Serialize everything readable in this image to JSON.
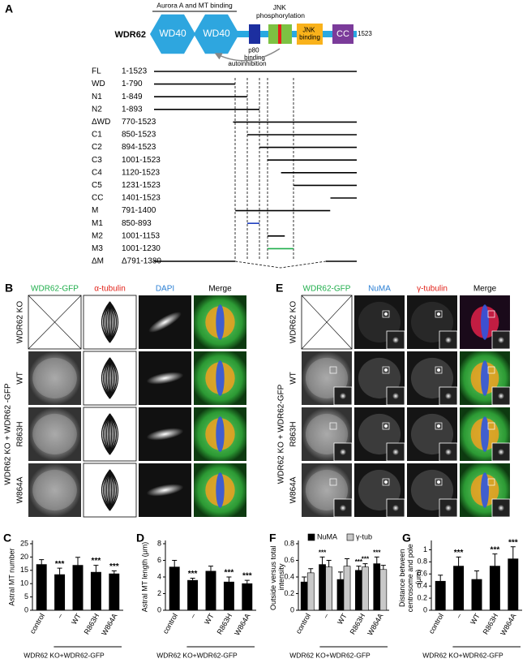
{
  "panel_a": {
    "label": "A",
    "protein": "WDR62",
    "domains": [
      "WD40",
      "WD40",
      "JNK binding",
      "CC"
    ],
    "length": 1523,
    "annotations": {
      "mt_binding": "Aurora A and MT binding",
      "jnk_phosphorylation": "JNK phosphorylation",
      "p80_binding": "p80 binding",
      "autoinhibition": "autoinhibition"
    },
    "constructs": [
      {
        "name": "FL",
        "range": "1-1523",
        "start": 1,
        "end": 1523,
        "color": "#000000"
      },
      {
        "name": "WD",
        "range": "1-790",
        "start": 1,
        "end": 790,
        "color": "#000000"
      },
      {
        "name": "N1",
        "range": "1-849",
        "start": 1,
        "end": 849,
        "color": "#000000"
      },
      {
        "name": "N2",
        "range": "1-893",
        "start": 1,
        "end": 893,
        "color": "#000000"
      },
      {
        "name": "ΔWD",
        "range": "770-1523",
        "start": 770,
        "end": 1523,
        "color": "#000000"
      },
      {
        "name": "C1",
        "range": "850-1523",
        "start": 850,
        "end": 1523,
        "color": "#000000"
      },
      {
        "name": "C2",
        "range": "894-1523",
        "start": 894,
        "end": 1523,
        "color": "#000000"
      },
      {
        "name": "C3",
        "range": "1001-1523",
        "start": 1001,
        "end": 1523,
        "color": "#000000"
      },
      {
        "name": "C4",
        "range": "1120-1523",
        "start": 1120,
        "end": 1523,
        "color": "#000000"
      },
      {
        "name": "C5",
        "range": "1231-1523",
        "start": 1231,
        "end": 1523,
        "color": "#000000"
      },
      {
        "name": "CC",
        "range": "1401-1523",
        "start": 1401,
        "end": 1523,
        "color": "#000000"
      },
      {
        "name": "M",
        "range": "791-1400",
        "start": 791,
        "end": 1400,
        "color": "#000000"
      },
      {
        "name": "M1",
        "range": "850-893",
        "start": 850,
        "end": 893,
        "color": "#1f3fbf"
      },
      {
        "name": "M2",
        "range": "1001-1153",
        "start": 1001,
        "end": 1153,
        "color": "#000000"
      },
      {
        "name": "M3",
        "range": "1001-1230",
        "start": 1001,
        "end": 1230,
        "color": "#1fae4b"
      },
      {
        "name": "ΔM",
        "range": "Δ791-1380",
        "deleted_start": 791,
        "deleted_end": 1380,
        "color": "#000000"
      }
    ]
  },
  "panel_b": {
    "label": "B",
    "columns": [
      "WDR62-GFP",
      "α-tubulin",
      "DAPI",
      "Merge"
    ],
    "column_colors": [
      "#1fae4b",
      "#e2231a",
      "#2a7fd4",
      "#000000"
    ],
    "rows": [
      "WDR62 KO",
      "WT",
      "R863H",
      "W864A"
    ],
    "group_label": "WDR62 KO + WDR62 -GFP"
  },
  "panel_e": {
    "label": "E",
    "columns": [
      "WDR62-GFP",
      "NuMA",
      "γ-tubulin",
      "Merge"
    ],
    "column_colors": [
      "#1fae4b",
      "#2a7fd4",
      "#e2231a",
      "#000000"
    ],
    "rows": [
      "WDR62 KO",
      "WT",
      "R863H",
      "W864A"
    ],
    "group_label": "WDR62 KO + WDR62-GFP"
  },
  "chart_data": [
    {
      "label": "C",
      "type": "bar",
      "y_label": "Astral MT number",
      "categories": [
        "control",
        "–",
        "WT",
        "R863H",
        "W864A"
      ],
      "values": [
        17.2,
        13.4,
        16.9,
        14.3,
        13.7
      ],
      "errors": [
        1.8,
        2.4,
        3.0,
        2.6,
        1.1
      ],
      "color": "#000000",
      "annotations": [
        null,
        "***",
        null,
        "***",
        "***"
      ],
      "ylim": [
        0,
        25
      ],
      "yticks": [
        0,
        5,
        10,
        15,
        20,
        25
      ],
      "group_label": "WDR62 KO+WDR62-GFP"
    },
    {
      "label": "D",
      "type": "bar",
      "y_label": "Astral MT length (μm)",
      "categories": [
        "control",
        "–",
        "WT",
        "R863H",
        "W864A"
      ],
      "values": [
        5.2,
        3.6,
        4.7,
        3.4,
        3.2
      ],
      "errors": [
        0.8,
        0.25,
        0.6,
        0.6,
        0.4
      ],
      "color": "#000000",
      "annotations": [
        null,
        "***",
        null,
        "***",
        "***"
      ],
      "ylim": [
        0,
        8
      ],
      "yticks": [
        0,
        2,
        4,
        6,
        8
      ],
      "group_label": "WDR62 KO+WDR62-GFP"
    },
    {
      "label": "F",
      "type": "bar",
      "y_label": "Outside versus total intensity",
      "categories": [
        "control",
        "–",
        "WT",
        "R863H",
        "W864A"
      ],
      "series": [
        {
          "name": "NuMA",
          "color": "#000000",
          "values": [
            0.34,
            0.55,
            0.37,
            0.48,
            0.56
          ],
          "errors": [
            0.06,
            0.09,
            0.09,
            0.05,
            0.08
          ],
          "annotations": [
            null,
            "***",
            null,
            "***",
            "***"
          ]
        },
        {
          "name": "γ-tub",
          "color": "#c8c8c8",
          "values": [
            0.45,
            0.52,
            0.53,
            0.52,
            0.49
          ],
          "errors": [
            0.05,
            0.08,
            0.09,
            0.04,
            0.05
          ],
          "annotations": [
            null,
            null,
            null,
            "***",
            null
          ]
        }
      ],
      "legend": "top",
      "ylim": [
        0,
        0.8
      ],
      "yticks": [
        0,
        0.2,
        0.4,
        0.6,
        0.8
      ],
      "group_label": "WDR62 KO+WDR62-GFP"
    },
    {
      "label": "G",
      "type": "bar",
      "y_label": "Distance between centrosome and pole (μm)",
      "categories": [
        "control",
        "–",
        "WT",
        "R863H",
        "W864A"
      ],
      "values": [
        0.48,
        0.73,
        0.51,
        0.73,
        0.85
      ],
      "errors": [
        0.1,
        0.15,
        0.14,
        0.2,
        0.2
      ],
      "color": "#000000",
      "annotations": [
        null,
        "***",
        null,
        "***",
        "***"
      ],
      "ylim": [
        0,
        1.1
      ],
      "yticks": [
        0,
        0.2,
        0.4,
        0.6,
        0.8,
        1
      ],
      "group_label": "WDR62 KO+WDR62-GFP"
    }
  ]
}
